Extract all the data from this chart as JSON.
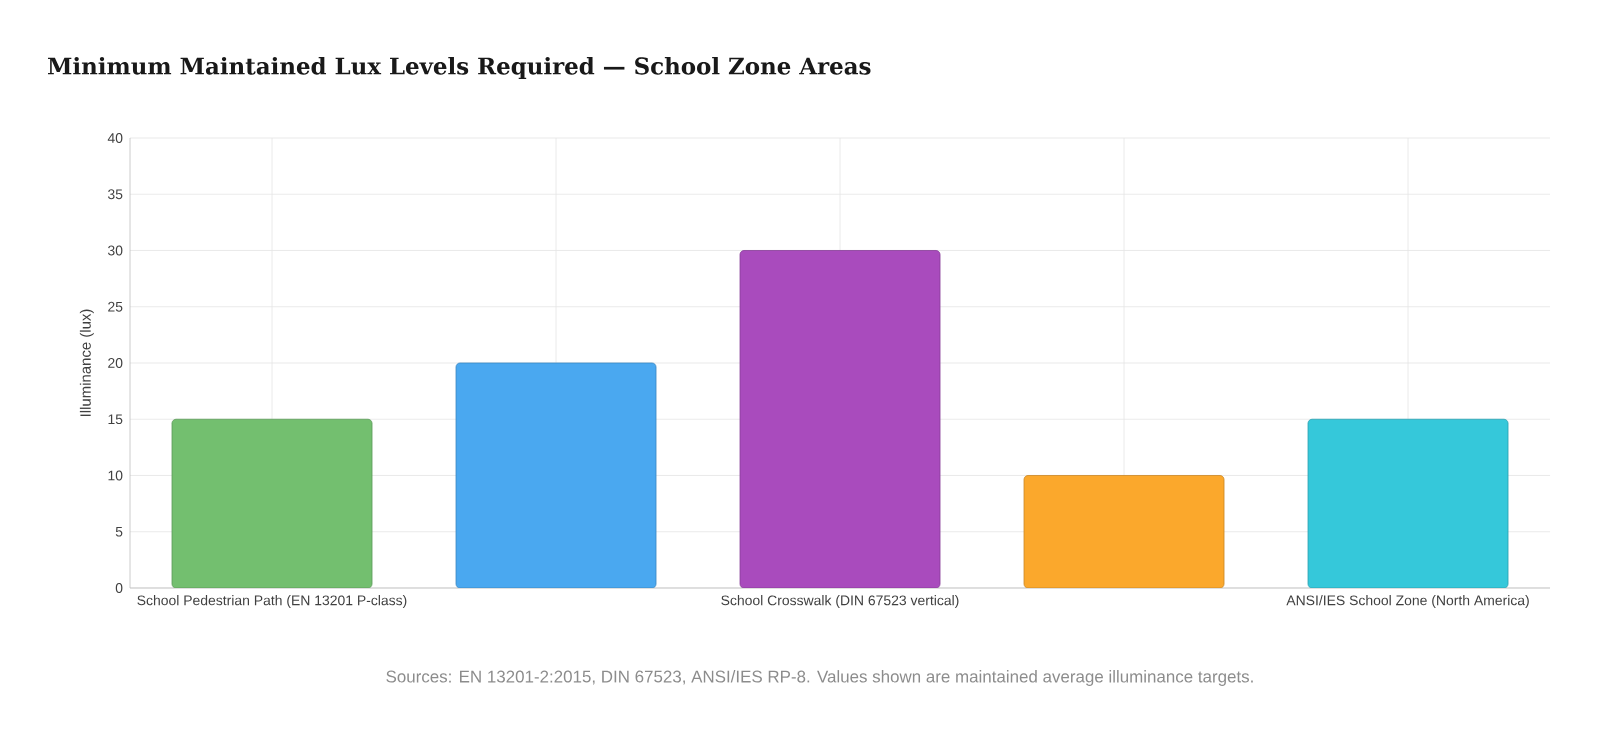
{
  "chart_data": {
    "type": "bar",
    "title": "Minimum Maintained Lux Levels Required — School Zone Areas",
    "ylabel": "Illuminance (lux)",
    "categories": [
      "School Pedestrian Path (EN 13201 P-class)",
      null,
      "School Crosswalk (DIN 67523 vertical)",
      null,
      "ANSI/IES School Zone (North America)"
    ],
    "values": [
      15,
      20,
      30,
      10,
      15
    ],
    "colors": [
      "#73bf6f",
      "#4aa8f0",
      "#a94bbd",
      "#fba82c",
      "#35c8da"
    ],
    "ylim": [
      0,
      40
    ],
    "yticks": [
      0,
      5,
      10,
      15,
      20,
      25,
      30,
      35,
      40
    ],
    "grid": true,
    "annotations": [
      "Sources: EN 13201-2:2015, DIN 67523, ANSI/IES RP-8. Values shown are maintained average illuminance targets."
    ]
  }
}
